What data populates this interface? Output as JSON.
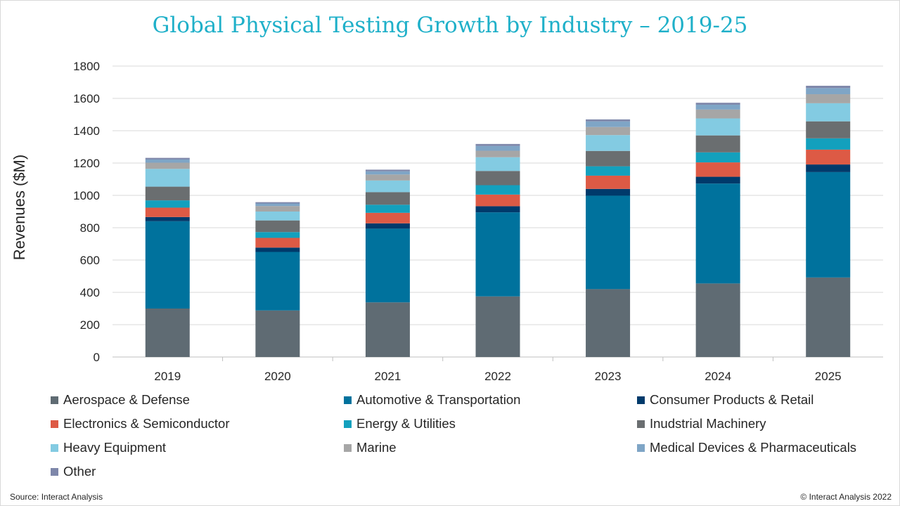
{
  "title": "Global Physical Testing Growth by Industry – 2019-25",
  "source": "Source: Interact Analysis",
  "copyright": "© Interact Analysis 2022",
  "chart_data": {
    "type": "bar",
    "stacked": true,
    "title": "Global Physical Testing Growth by Industry – 2019-25",
    "xlabel": "",
    "ylabel": "Revenues ($M)",
    "ylim": [
      0,
      1800
    ],
    "yticks": [
      0,
      200,
      400,
      600,
      800,
      1000,
      1200,
      1400,
      1600,
      1800
    ],
    "grid": true,
    "legend_position": "bottom",
    "categories": [
      "2019",
      "2020",
      "2021",
      "2022",
      "2023",
      "2024",
      "2025"
    ],
    "series": [
      {
        "name": "Aerospace & Defense",
        "color": "#5f6b73",
        "values": [
          300,
          288,
          338,
          375,
          420,
          455,
          492
        ]
      },
      {
        "name": "Automotive & Transportation",
        "color": "#00729d",
        "values": [
          540,
          362,
          456,
          520,
          578,
          618,
          652
        ]
      },
      {
        "name": "Consumer Products & Retail",
        "color": "#003a6b",
        "values": [
          26,
          27,
          33,
          38,
          42,
          42,
          47
        ]
      },
      {
        "name": "Electronics & Semiconductor",
        "color": "#dd5a45",
        "values": [
          58,
          60,
          65,
          72,
          82,
          89,
          92
        ]
      },
      {
        "name": "Energy & Utilities",
        "color": "#13a0bd",
        "values": [
          45,
          36,
          50,
          58,
          58,
          62,
          70
        ]
      },
      {
        "name": "Inudstrial Machinery",
        "color": "#6a6e70",
        "values": [
          85,
          72,
          78,
          88,
          95,
          105,
          105
        ]
      },
      {
        "name": "Heavy Equipment",
        "color": "#83cbe2",
        "values": [
          110,
          55,
          72,
          85,
          98,
          105,
          112
        ]
      },
      {
        "name": "Marine",
        "color": "#a6a6a6",
        "values": [
          38,
          34,
          37,
          40,
          50,
          55,
          56
        ]
      },
      {
        "name": "Medical Devices & Pharmaceuticals",
        "color": "#7fa5c6",
        "values": [
          20,
          16,
          20,
          30,
          35,
          30,
          38
        ]
      },
      {
        "name": "Other",
        "color": "#7e87aa",
        "values": [
          10,
          8,
          10,
          12,
          12,
          12,
          14
        ]
      }
    ]
  }
}
